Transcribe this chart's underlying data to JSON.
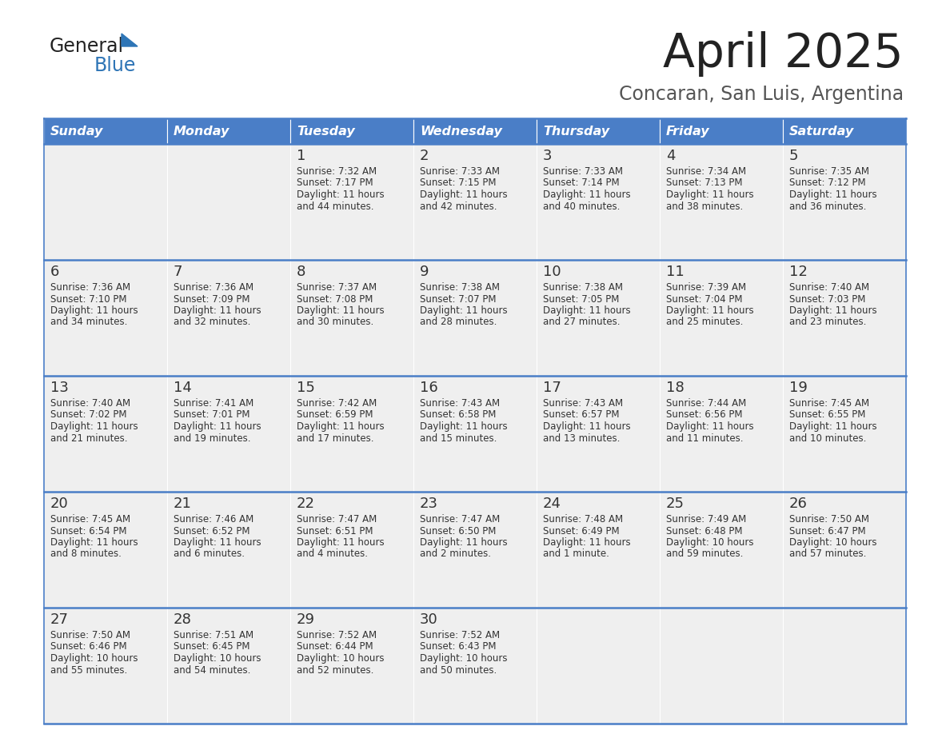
{
  "title": "April 2025",
  "subtitle": "Concaran, San Luis, Argentina",
  "days_of_week": [
    "Sunday",
    "Monday",
    "Tuesday",
    "Wednesday",
    "Thursday",
    "Friday",
    "Saturday"
  ],
  "header_bg": "#4a7ec7",
  "header_text_color": "#FFFFFF",
  "cell_bg_light": "#EFEFEF",
  "text_color": "#333333",
  "border_color": "#4a7ec7",
  "title_color": "#222222",
  "subtitle_color": "#555555",
  "logo_general_color": "#222222",
  "logo_blue_color": "#2E75B6",
  "calendar": [
    [
      {
        "day": null,
        "info": null
      },
      {
        "day": null,
        "info": null
      },
      {
        "day": 1,
        "info": "Sunrise: 7:32 AM\nSunset: 7:17 PM\nDaylight: 11 hours\nand 44 minutes."
      },
      {
        "day": 2,
        "info": "Sunrise: 7:33 AM\nSunset: 7:15 PM\nDaylight: 11 hours\nand 42 minutes."
      },
      {
        "day": 3,
        "info": "Sunrise: 7:33 AM\nSunset: 7:14 PM\nDaylight: 11 hours\nand 40 minutes."
      },
      {
        "day": 4,
        "info": "Sunrise: 7:34 AM\nSunset: 7:13 PM\nDaylight: 11 hours\nand 38 minutes."
      },
      {
        "day": 5,
        "info": "Sunrise: 7:35 AM\nSunset: 7:12 PM\nDaylight: 11 hours\nand 36 minutes."
      }
    ],
    [
      {
        "day": 6,
        "info": "Sunrise: 7:36 AM\nSunset: 7:10 PM\nDaylight: 11 hours\nand 34 minutes."
      },
      {
        "day": 7,
        "info": "Sunrise: 7:36 AM\nSunset: 7:09 PM\nDaylight: 11 hours\nand 32 minutes."
      },
      {
        "day": 8,
        "info": "Sunrise: 7:37 AM\nSunset: 7:08 PM\nDaylight: 11 hours\nand 30 minutes."
      },
      {
        "day": 9,
        "info": "Sunrise: 7:38 AM\nSunset: 7:07 PM\nDaylight: 11 hours\nand 28 minutes."
      },
      {
        "day": 10,
        "info": "Sunrise: 7:38 AM\nSunset: 7:05 PM\nDaylight: 11 hours\nand 27 minutes."
      },
      {
        "day": 11,
        "info": "Sunrise: 7:39 AM\nSunset: 7:04 PM\nDaylight: 11 hours\nand 25 minutes."
      },
      {
        "day": 12,
        "info": "Sunrise: 7:40 AM\nSunset: 7:03 PM\nDaylight: 11 hours\nand 23 minutes."
      }
    ],
    [
      {
        "day": 13,
        "info": "Sunrise: 7:40 AM\nSunset: 7:02 PM\nDaylight: 11 hours\nand 21 minutes."
      },
      {
        "day": 14,
        "info": "Sunrise: 7:41 AM\nSunset: 7:01 PM\nDaylight: 11 hours\nand 19 minutes."
      },
      {
        "day": 15,
        "info": "Sunrise: 7:42 AM\nSunset: 6:59 PM\nDaylight: 11 hours\nand 17 minutes."
      },
      {
        "day": 16,
        "info": "Sunrise: 7:43 AM\nSunset: 6:58 PM\nDaylight: 11 hours\nand 15 minutes."
      },
      {
        "day": 17,
        "info": "Sunrise: 7:43 AM\nSunset: 6:57 PM\nDaylight: 11 hours\nand 13 minutes."
      },
      {
        "day": 18,
        "info": "Sunrise: 7:44 AM\nSunset: 6:56 PM\nDaylight: 11 hours\nand 11 minutes."
      },
      {
        "day": 19,
        "info": "Sunrise: 7:45 AM\nSunset: 6:55 PM\nDaylight: 11 hours\nand 10 minutes."
      }
    ],
    [
      {
        "day": 20,
        "info": "Sunrise: 7:45 AM\nSunset: 6:54 PM\nDaylight: 11 hours\nand 8 minutes."
      },
      {
        "day": 21,
        "info": "Sunrise: 7:46 AM\nSunset: 6:52 PM\nDaylight: 11 hours\nand 6 minutes."
      },
      {
        "day": 22,
        "info": "Sunrise: 7:47 AM\nSunset: 6:51 PM\nDaylight: 11 hours\nand 4 minutes."
      },
      {
        "day": 23,
        "info": "Sunrise: 7:47 AM\nSunset: 6:50 PM\nDaylight: 11 hours\nand 2 minutes."
      },
      {
        "day": 24,
        "info": "Sunrise: 7:48 AM\nSunset: 6:49 PM\nDaylight: 11 hours\nand 1 minute."
      },
      {
        "day": 25,
        "info": "Sunrise: 7:49 AM\nSunset: 6:48 PM\nDaylight: 10 hours\nand 59 minutes."
      },
      {
        "day": 26,
        "info": "Sunrise: 7:50 AM\nSunset: 6:47 PM\nDaylight: 10 hours\nand 57 minutes."
      }
    ],
    [
      {
        "day": 27,
        "info": "Sunrise: 7:50 AM\nSunset: 6:46 PM\nDaylight: 10 hours\nand 55 minutes."
      },
      {
        "day": 28,
        "info": "Sunrise: 7:51 AM\nSunset: 6:45 PM\nDaylight: 10 hours\nand 54 minutes."
      },
      {
        "day": 29,
        "info": "Sunrise: 7:52 AM\nSunset: 6:44 PM\nDaylight: 10 hours\nand 52 minutes."
      },
      {
        "day": 30,
        "info": "Sunrise: 7:52 AM\nSunset: 6:43 PM\nDaylight: 10 hours\nand 50 minutes."
      },
      {
        "day": null,
        "info": null
      },
      {
        "day": null,
        "info": null
      },
      {
        "day": null,
        "info": null
      }
    ]
  ]
}
